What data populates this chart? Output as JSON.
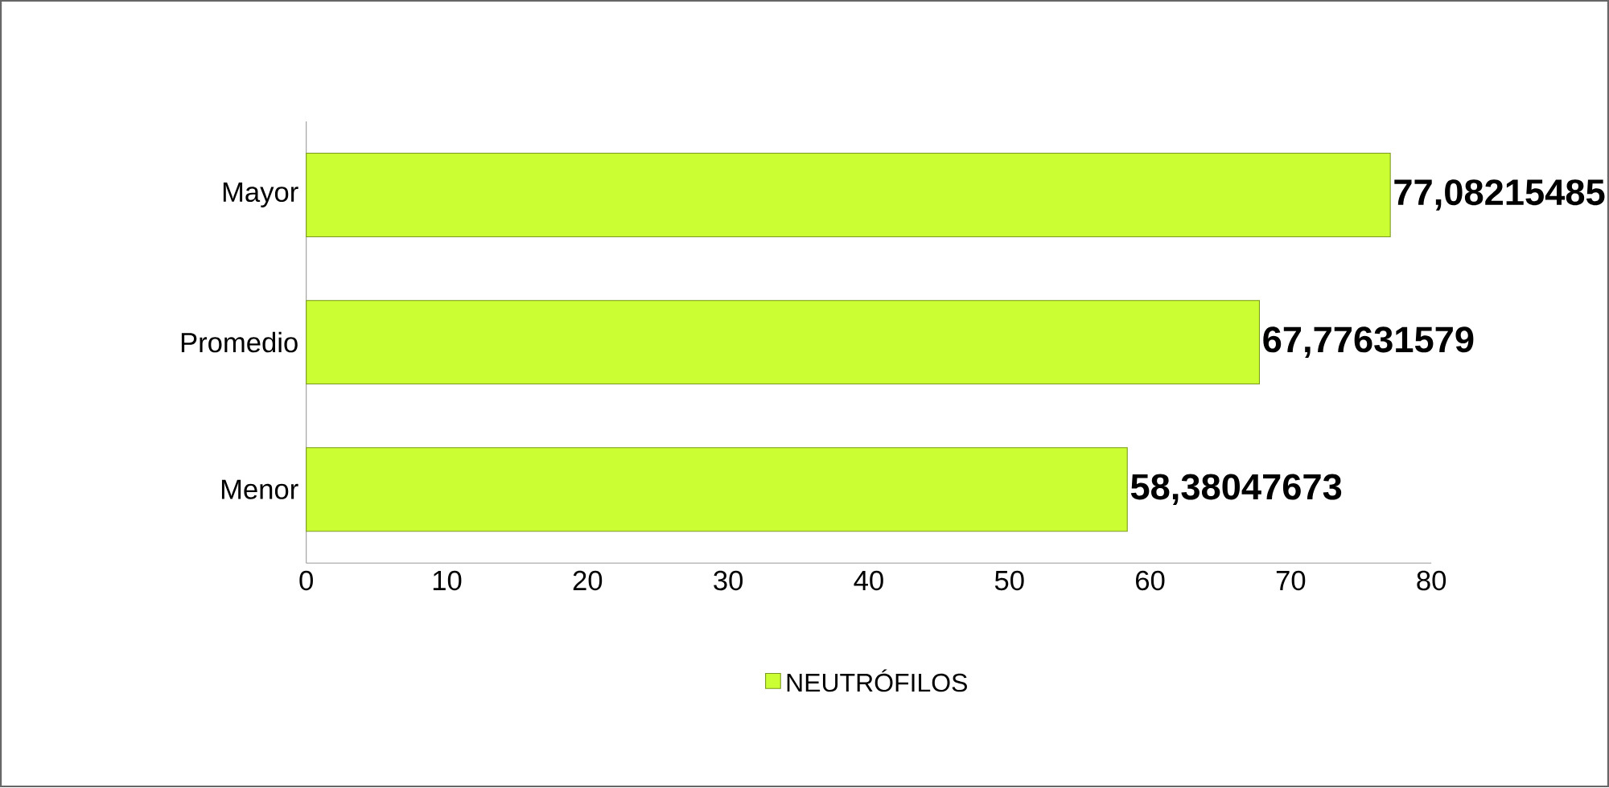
{
  "chart_data": {
    "type": "bar",
    "orientation": "horizontal",
    "categories": [
      "Mayor",
      "Promedio",
      "Menor"
    ],
    "series": [
      {
        "name": "NEUTRÓFILOS",
        "color": "#ccff33",
        "values": [
          77.08215485,
          67.77631579,
          58.38047673
        ],
        "value_labels": [
          "77,08215485",
          "67,77631579",
          "58,38047673"
        ]
      }
    ],
    "xlim": [
      0,
      80
    ],
    "xticks": [
      0,
      10,
      20,
      30,
      40,
      50,
      60,
      70,
      80
    ],
    "legend": "bottom"
  }
}
